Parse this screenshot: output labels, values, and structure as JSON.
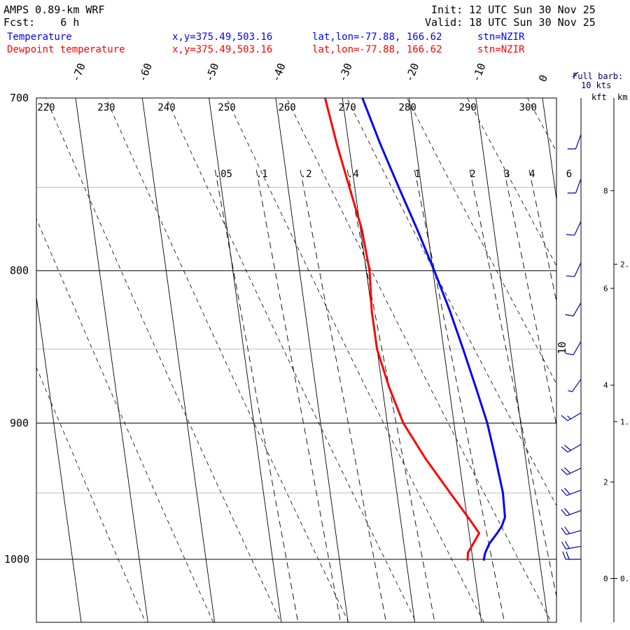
{
  "header": {
    "model": "AMPS 0.89-km WRF",
    "fcst": "Fcst:    6 h",
    "init": "Init: 12 UTC Sun 30 Nov 25",
    "valid": "Valid: 18 UTC Sun 30 Nov 25",
    "temperature_label": "Temperature",
    "dewpoint_label": "Dewpoint temperature",
    "xy": "x,y=375.49,503.16",
    "latlon": "lat,lon=-77.88, 166.62",
    "station": "stn=NZIR",
    "temp_color": "#0000ff",
    "dew_color": "#ff0000"
  },
  "barb_key": {
    "line1": "Full barb:",
    "line2": "10 kts"
  },
  "height_axis": {
    "kft_label": "kft",
    "km_label": "km",
    "kft_ticks": [
      {
        "label": "8",
        "p": 752
      },
      {
        "label": "6",
        "p": 811
      },
      {
        "label": "4",
        "p": 874
      },
      {
        "label": "2",
        "p": 942
      },
      {
        "label": "0",
        "p": 1015
      }
    ],
    "km_ticks": [
      {
        "label": "2.",
        "p": 796
      },
      {
        "label": "1.",
        "p": 899
      },
      {
        "label": "0.",
        "p": 1015
      }
    ]
  },
  "chart_data": {
    "type": "line",
    "title": "AMPS 0.89-km WRF",
    "ylabel": "",
    "xlabel": "",
    "y_scale": "log",
    "ylim": [
      1045,
      700
    ],
    "y_ticks": [
      700,
      800,
      900,
      1000
    ],
    "y_tick_labels": [
      "700",
      "800",
      "900",
      "1000"
    ],
    "grid_pressures": [
      750,
      850,
      950
    ],
    "isotherm_top_labels": [
      "-70",
      "-60",
      "-50",
      "-40",
      "-30",
      "-20",
      "-10",
      "0"
    ],
    "dry_adiabat_labels": [
      "220",
      "230",
      "240",
      "250",
      "260",
      "270",
      "280",
      "290",
      "300"
    ],
    "mixing_ratio_labels": [
      ".05",
      ".1",
      ".2",
      ".4",
      "1",
      "2",
      "3",
      "4",
      "6"
    ],
    "series": [
      {
        "name": "Temperature",
        "color": "#0000ff",
        "points": [
          {
            "p": 1001,
            "t": -18.4
          },
          {
            "p": 995,
            "t": -18.0
          },
          {
            "p": 988,
            "t": -17.2
          },
          {
            "p": 980,
            "t": -15.8
          },
          {
            "p": 975,
            "t": -15.0
          },
          {
            "p": 968,
            "t": -14.3
          },
          {
            "p": 950,
            "t": -14.1
          },
          {
            "p": 925,
            "t": -14.5
          },
          {
            "p": 900,
            "t": -15.0
          },
          {
            "p": 875,
            "t": -16.0
          },
          {
            "p": 850,
            "t": -17.1
          },
          {
            "p": 825,
            "t": -18.3
          },
          {
            "p": 800,
            "t": -19.8
          },
          {
            "p": 775,
            "t": -21.5
          },
          {
            "p": 750,
            "t": -23.4
          },
          {
            "p": 725,
            "t": -25.3
          },
          {
            "p": 700,
            "t": -27.0
          }
        ]
      },
      {
        "name": "Dewpoint temperature",
        "color": "#ff0000",
        "points": [
          {
            "p": 1001,
            "t": -20.8
          },
          {
            "p": 995,
            "t": -20.6
          },
          {
            "p": 988,
            "t": -19.6
          },
          {
            "p": 980,
            "t": -18.5
          },
          {
            "p": 970,
            "t": -19.6
          },
          {
            "p": 950,
            "t": -22.0
          },
          {
            "p": 925,
            "t": -25.0
          },
          {
            "p": 900,
            "t": -27.6
          },
          {
            "p": 875,
            "t": -29.0
          },
          {
            "p": 850,
            "t": -30.0
          },
          {
            "p": 825,
            "t": -30.0
          },
          {
            "p": 800,
            "t": -29.5
          },
          {
            "p": 775,
            "t": -29.8
          },
          {
            "p": 750,
            "t": -30.8
          },
          {
            "p": 725,
            "t": -31.8
          },
          {
            "p": 700,
            "t": -32.6
          }
        ]
      }
    ],
    "wind_barbs": [
      {
        "p": 720,
        "dir": 200,
        "spd": 10
      },
      {
        "p": 745,
        "dir": 200,
        "spd": 10
      },
      {
        "p": 770,
        "dir": 205,
        "spd": 10
      },
      {
        "p": 795,
        "dir": 205,
        "spd": 10
      },
      {
        "p": 820,
        "dir": 210,
        "spd": 10
      },
      {
        "p": 845,
        "dir": 210,
        "spd": 10
      },
      {
        "p": 870,
        "dir": 215,
        "spd": 5
      },
      {
        "p": 893,
        "dir": 240,
        "spd": 15
      },
      {
        "p": 915,
        "dir": 240,
        "spd": 20
      },
      {
        "p": 932,
        "dir": 245,
        "spd": 20
      },
      {
        "p": 948,
        "dir": 250,
        "spd": 20
      },
      {
        "p": 963,
        "dir": 250,
        "spd": 20
      },
      {
        "p": 978,
        "dir": 255,
        "spd": 20
      },
      {
        "p": 990,
        "dir": 260,
        "spd": 20
      },
      {
        "p": 1000,
        "dir": 270,
        "spd": 20
      }
    ],
    "wind_barb_annotation": "10"
  }
}
